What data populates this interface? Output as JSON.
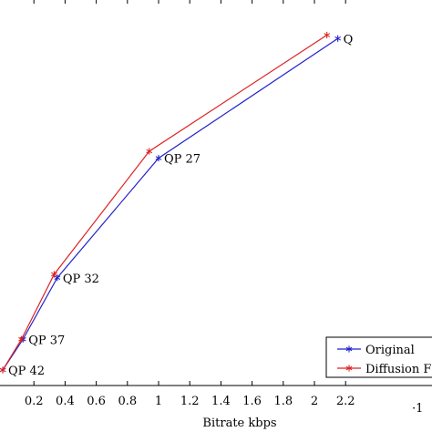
{
  "chart_data": {
    "type": "line",
    "title": "",
    "xlabel": "Bitrate kbps",
    "ylabel": "",
    "x_scale_note": "·1",
    "xlim": [
      0.0,
      2.2
    ],
    "ylim": [
      0.0,
      1.0
    ],
    "x_ticks": [
      "0.2",
      "0.4",
      "0.6",
      "0.8",
      "1",
      "1.2",
      "1.4",
      "1.6",
      "1.8",
      "2",
      "2.2"
    ],
    "grid": false,
    "legend_position": "bottom-right",
    "series": [
      {
        "name": "Original",
        "color": "#2222cc",
        "marker": "asterisk",
        "x": [
          0.0,
          0.13,
          0.35,
          1.0,
          2.15
        ],
        "y": [
          0.0,
          0.09,
          0.27,
          0.62,
          0.97
        ]
      },
      {
        "name": "Diffusion F",
        "color": "#dd2222",
        "marker": "asterisk",
        "x": [
          0.0,
          0.12,
          0.33,
          0.94,
          2.08
        ],
        "y": [
          0.0,
          0.09,
          0.28,
          0.64,
          0.98
        ]
      }
    ],
    "annotations": [
      {
        "text": "QP 42",
        "x": 0.0,
        "y": 0.0
      },
      {
        "text": "QP 37",
        "x": 0.13,
        "y": 0.09
      },
      {
        "text": "QP 32",
        "x": 0.35,
        "y": 0.27
      },
      {
        "text": "QP 27",
        "x": 1.0,
        "y": 0.62
      },
      {
        "text": "Q",
        "x": 2.15,
        "y": 0.97
      }
    ]
  }
}
